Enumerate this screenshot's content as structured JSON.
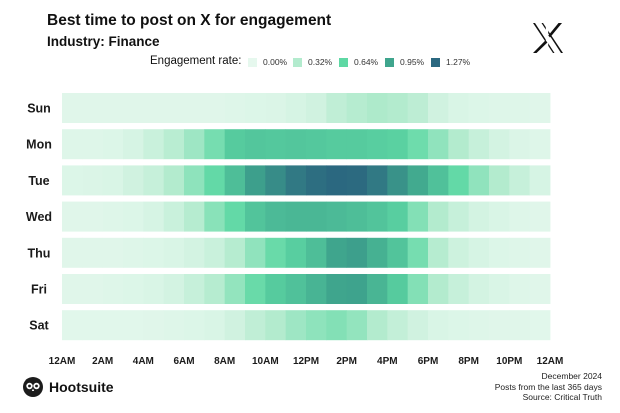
{
  "header": {
    "title": "Best time to post on X for engagement",
    "subtitle": "Industry: Finance"
  },
  "legend": {
    "title": "Engagement rate:",
    "items": [
      {
        "label": "0.00%",
        "color": "#e6f8ee"
      },
      {
        "label": "0.32%",
        "color": "#b3ebce"
      },
      {
        "label": "0.64%",
        "color": "#5ed8a4"
      },
      {
        "label": "0.95%",
        "color": "#3fa58d"
      },
      {
        "label": "1.27%",
        "color": "#2b6880"
      }
    ]
  },
  "chart_data": {
    "type": "heatmap",
    "title": "Best time to post on X for engagement",
    "subtitle": "Industry: Finance",
    "value_unit": "engagement rate (%)",
    "color_scale": {
      "min": 0.0,
      "max": 1.27,
      "stops": [
        0.0,
        0.32,
        0.64,
        0.95,
        1.27
      ]
    },
    "rows": [
      "Sun",
      "Mon",
      "Tue",
      "Wed",
      "Thu",
      "Fri",
      "Sat"
    ],
    "x_tick_labels": [
      "12AM",
      "2AM",
      "4AM",
      "6AM",
      "8AM",
      "10AM",
      "12PM",
      "2PM",
      "4PM",
      "6PM",
      "8PM",
      "10PM",
      "12AM"
    ],
    "hours": 24,
    "values": [
      [
        0.04,
        0.04,
        0.04,
        0.04,
        0.04,
        0.04,
        0.04,
        0.04,
        0.05,
        0.06,
        0.07,
        0.1,
        0.14,
        0.24,
        0.3,
        0.34,
        0.32,
        0.26,
        0.14,
        0.08,
        0.06,
        0.05,
        0.05,
        0.04
      ],
      [
        0.05,
        0.05,
        0.06,
        0.1,
        0.18,
        0.28,
        0.4,
        0.55,
        0.72,
        0.75,
        0.74,
        0.75,
        0.74,
        0.72,
        0.72,
        0.7,
        0.68,
        0.58,
        0.45,
        0.32,
        0.2,
        0.12,
        0.07,
        0.05
      ],
      [
        0.06,
        0.07,
        0.08,
        0.14,
        0.2,
        0.32,
        0.46,
        0.62,
        0.8,
        0.98,
        1.08,
        1.18,
        1.24,
        1.27,
        1.26,
        1.18,
        1.05,
        0.92,
        0.78,
        0.62,
        0.45,
        0.32,
        0.2,
        0.1
      ],
      [
        0.04,
        0.04,
        0.05,
        0.06,
        0.1,
        0.18,
        0.3,
        0.48,
        0.62,
        0.76,
        0.82,
        0.84,
        0.84,
        0.82,
        0.8,
        0.76,
        0.7,
        0.5,
        0.32,
        0.2,
        0.12,
        0.08,
        0.05,
        0.04
      ],
      [
        0.04,
        0.04,
        0.04,
        0.05,
        0.06,
        0.08,
        0.12,
        0.18,
        0.3,
        0.45,
        0.6,
        0.7,
        0.8,
        0.95,
        0.98,
        0.88,
        0.76,
        0.55,
        0.3,
        0.16,
        0.1,
        0.06,
        0.05,
        0.04
      ],
      [
        0.04,
        0.04,
        0.05,
        0.06,
        0.08,
        0.12,
        0.2,
        0.3,
        0.44,
        0.6,
        0.72,
        0.78,
        0.86,
        0.95,
        0.96,
        0.85,
        0.72,
        0.5,
        0.32,
        0.2,
        0.12,
        0.08,
        0.05,
        0.04
      ],
      [
        0.03,
        0.03,
        0.03,
        0.03,
        0.04,
        0.05,
        0.06,
        0.08,
        0.14,
        0.24,
        0.32,
        0.4,
        0.46,
        0.5,
        0.44,
        0.32,
        0.22,
        0.14,
        0.08,
        0.06,
        0.05,
        0.04,
        0.04,
        0.03
      ]
    ]
  },
  "footer": {
    "brand": "Hootsuite",
    "date": "December 2024",
    "note": "Posts from the last 365 days",
    "source": "Source: Critical Truth"
  }
}
